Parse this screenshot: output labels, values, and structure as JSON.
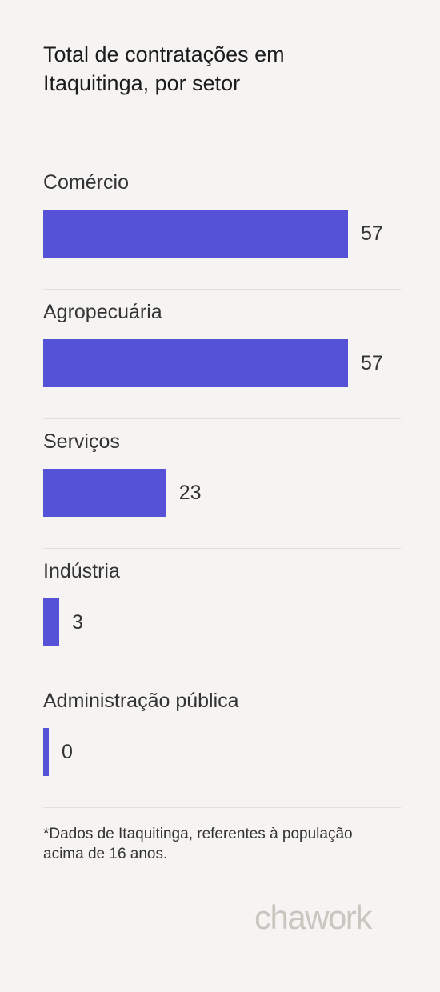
{
  "title": "Total de contratações em Itaquitinga, por setor",
  "chart_data": {
    "type": "bar",
    "orientation": "horizontal",
    "title": "Total de contratações em Itaquitinga, por setor",
    "categories": [
      "Comércio",
      "Agropecuária",
      "Serviços",
      "Indústria",
      "Administração pública"
    ],
    "values": [
      57,
      57,
      23,
      3,
      0
    ],
    "bar_color": "#5552d8",
    "grid": false
  },
  "footnote": "*Dados de Itaquitinga, referentes à população acima de 16 anos.",
  "brand": {
    "logo_text": "chawork",
    "color": "#c9c6bf"
  }
}
